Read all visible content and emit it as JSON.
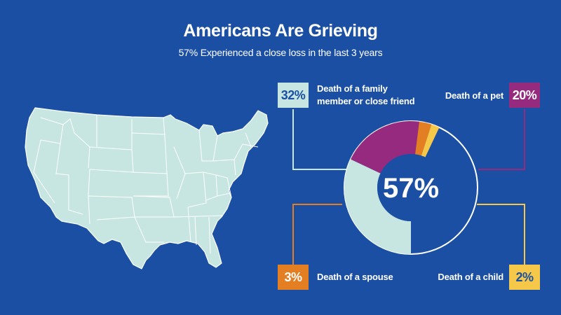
{
  "header": {
    "title": "Americans Are Grieving",
    "subtitle": "57% Experienced a close loss in the last 3 years"
  },
  "colors": {
    "background": "#1a4fa3",
    "map_fill": "#c7e6e1",
    "donut_remainder": "#1a4fa3",
    "donut_ring_outline": "#ffffff"
  },
  "map": {
    "icon": "us-map-icon"
  },
  "chart_data": {
    "type": "pie",
    "center_label": "57%",
    "total_percent": 57,
    "slices": [
      {
        "label": "Death of a family member or close friend",
        "value": 32,
        "display": "32%",
        "color": "#c7e6e1"
      },
      {
        "label": "Death of a pet",
        "value": 20,
        "display": "20%",
        "color": "#962a7e"
      },
      {
        "label": "Death of a spouse",
        "value": 3,
        "display": "3%",
        "color": "#e47e22"
      },
      {
        "label": "Death of a child",
        "value": 2,
        "display": "2%",
        "color": "#f6c84a"
      }
    ]
  }
}
